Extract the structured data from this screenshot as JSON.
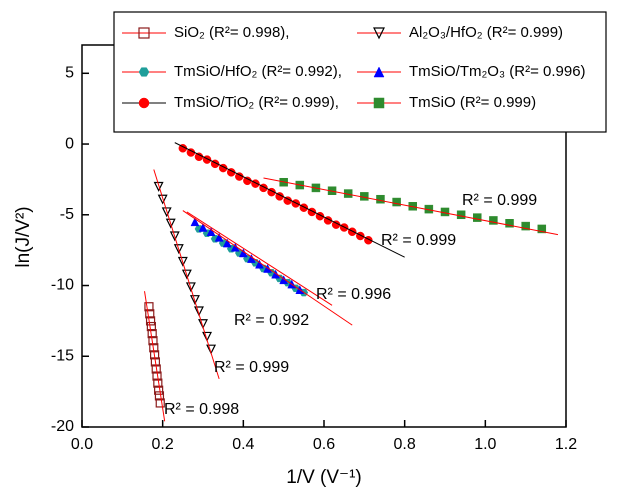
{
  "chart_data": {
    "type": "scatter",
    "xlabel": "1/V (V⁻¹)",
    "ylabel": "ln(J/V²)",
    "xlim": [
      0,
      1.2
    ],
    "ylim": [
      -20,
      7
    ],
    "xticks": [
      {
        "value": 0,
        "label": "0.0"
      },
      {
        "value": 0.2,
        "label": "0.2"
      },
      {
        "value": 0.4,
        "label": "0.4"
      },
      {
        "value": 0.6,
        "label": "0.6"
      },
      {
        "value": 0.8,
        "label": "0.8"
      },
      {
        "value": 1.0,
        "label": "1.0"
      },
      {
        "value": 1.2,
        "label": "1.2"
      }
    ],
    "yticks": [
      -20,
      -15,
      -10,
      -5,
      0,
      5
    ],
    "series": [
      {
        "name": "SiO₂ (R²= 0.998),",
        "color": "#8b1a1a",
        "marker": "square-open",
        "fit_color": "#ff0000",
        "fit_label": "R² = 0.998",
        "x": [
          0.166,
          0.168,
          0.17,
          0.172,
          0.174,
          0.176,
          0.178,
          0.18,
          0.182,
          0.184,
          0.186,
          0.188,
          0.19,
          0.192,
          0.194
        ],
        "y": [
          -11.5,
          -12.0,
          -12.5,
          -12.9,
          -13.4,
          -13.9,
          -14.4,
          -14.9,
          -15.4,
          -15.9,
          -16.4,
          -16.9,
          -17.4,
          -17.8,
          -18.3
        ],
        "fit_x": [
          0.155,
          0.205
        ],
        "fit_y": [
          -10.4,
          -19.6
        ]
      },
      {
        "name": "Al₂O₃/HfO₂ (R²= 0.999)",
        "color": "#000000",
        "marker": "triangle-down-open",
        "fit_color": "#ff0000",
        "fit_label": "R² = 0.999",
        "x": [
          0.19,
          0.2,
          0.21,
          0.22,
          0.23,
          0.24,
          0.25,
          0.26,
          0.27,
          0.28,
          0.29,
          0.3,
          0.31,
          0.32
        ],
        "y": [
          -3.0,
          -3.9,
          -4.8,
          -5.6,
          -6.5,
          -7.4,
          -8.3,
          -9.2,
          -10.1,
          -11.0,
          -11.8,
          -12.7,
          -13.6,
          -14.5
        ],
        "fit_x": [
          0.178,
          0.34
        ],
        "fit_y": [
          -1.8,
          -16.6
        ]
      },
      {
        "name": "TmSiO/HfO₂ (R²= 0.992),",
        "color": "#1f9e9a",
        "marker": "hexagon",
        "fit_color": "#ff0000",
        "fit_label": "R² = 0.992",
        "x": [
          0.29,
          0.31,
          0.33,
          0.35,
          0.37,
          0.39,
          0.41,
          0.43,
          0.45,
          0.47,
          0.49,
          0.51,
          0.53,
          0.55
        ],
        "y": [
          -6.0,
          -6.3,
          -6.7,
          -7.0,
          -7.4,
          -7.7,
          -8.1,
          -8.4,
          -8.8,
          -9.1,
          -9.5,
          -9.8,
          -10.2,
          -10.5
        ],
        "fit_x": [
          0.25,
          0.67
        ],
        "fit_y": [
          -4.7,
          -12.8
        ]
      },
      {
        "name": "TmSiO/Tm₂O₃ (R²= 0.996)",
        "color": "#0000ff",
        "marker": "triangle-up",
        "fit_color": "#ff0000",
        "fit_label": "R² = 0.996",
        "x": [
          0.28,
          0.3,
          0.32,
          0.34,
          0.36,
          0.38,
          0.4,
          0.42,
          0.44,
          0.46,
          0.48,
          0.5,
          0.52,
          0.54
        ],
        "y": [
          -5.5,
          -5.9,
          -6.2,
          -6.6,
          -7.0,
          -7.3,
          -7.7,
          -8.1,
          -8.5,
          -8.8,
          -9.2,
          -9.6,
          -9.9,
          -10.3
        ],
        "fit_x": [
          0.26,
          0.62
        ],
        "fit_y": [
          -4.8,
          -11.4
        ]
      },
      {
        "name": "TmSiO/TiO₂ (R²= 0.999),",
        "color": "#ff0000",
        "marker": "circle",
        "fit_color": "#000000",
        "fit_label": "R² = 0.999",
        "x": [
          0.25,
          0.27,
          0.29,
          0.31,
          0.33,
          0.35,
          0.37,
          0.39,
          0.41,
          0.43,
          0.45,
          0.47,
          0.49,
          0.51,
          0.53,
          0.55,
          0.57,
          0.59,
          0.61,
          0.63,
          0.65,
          0.67,
          0.69,
          0.71
        ],
        "y": [
          -0.3,
          -0.6,
          -0.9,
          -1.1,
          -1.4,
          -1.7,
          -2.0,
          -2.3,
          -2.6,
          -2.8,
          -3.1,
          -3.4,
          -3.7,
          -4.0,
          -4.2,
          -4.5,
          -4.8,
          -5.1,
          -5.4,
          -5.7,
          -5.9,
          -6.2,
          -6.5,
          -6.8
        ],
        "fit_x": [
          0.23,
          0.8
        ],
        "fit_y": [
          0.1,
          -8.0
        ]
      },
      {
        "name": "TmSiO (R²= 0.999)",
        "color": "#2e8b2e",
        "marker": "square",
        "fit_color": "#ff0000",
        "fit_label": "R² = 0.999",
        "x": [
          0.5,
          0.54,
          0.58,
          0.62,
          0.66,
          0.7,
          0.74,
          0.78,
          0.82,
          0.86,
          0.9,
          0.94,
          0.98,
          1.02,
          1.06,
          1.1,
          1.14
        ],
        "y": [
          -2.7,
          -2.9,
          -3.1,
          -3.3,
          -3.5,
          -3.7,
          -3.9,
          -4.1,
          -4.4,
          -4.6,
          -4.8,
          -5.0,
          -5.2,
          -5.4,
          -5.6,
          -5.8,
          -6.0
        ],
        "fit_x": [
          0.45,
          1.18
        ],
        "fit_y": [
          -2.4,
          -6.4
        ]
      }
    ]
  }
}
